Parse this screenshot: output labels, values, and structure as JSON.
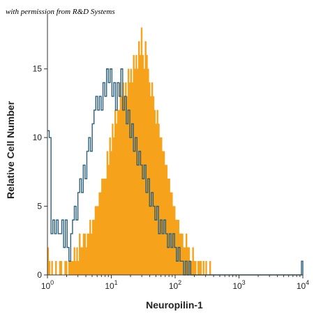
{
  "watermark": "with permission from R&D Systems",
  "chart_data": {
    "type": "histogram",
    "xscale": "log",
    "xlim": [
      1,
      10000
    ],
    "ylim": [
      0,
      19
    ],
    "xlabel": "Neuropilin-1",
    "ylabel": "Relative Cell Number",
    "xticks": [
      1,
      10,
      100,
      1000,
      10000
    ],
    "xtick_labels": [
      {
        "base": "10",
        "exp": "0"
      },
      {
        "base": "10",
        "exp": "1"
      },
      {
        "base": "10",
        "exp": "2"
      },
      {
        "base": "10",
        "exp": "3"
      },
      {
        "base": "10",
        "exp": "4"
      }
    ],
    "yticks": [
      0,
      5,
      10,
      15
    ],
    "ytick_labels": [
      "0",
      "5",
      "10",
      "15"
    ],
    "grid": false,
    "legend": "none",
    "series": [
      {
        "style": "filled",
        "color": "#f7a21b",
        "bins_log10": [
          0.0,
          2.6
        ],
        "values": [
          2,
          1,
          0,
          1,
          0,
          0,
          1,
          0,
          0,
          1,
          1,
          0,
          0,
          1,
          1,
          0,
          1,
          1,
          1,
          1,
          2,
          1,
          2,
          1,
          3,
          2,
          2,
          3,
          3,
          2,
          3,
          3,
          4,
          3,
          4,
          4,
          5,
          5,
          5,
          6,
          6,
          7,
          7,
          7,
          7,
          9,
          8,
          10,
          9,
          11,
          10,
          12,
          11,
          12,
          12,
          14,
          13,
          14,
          13,
          14,
          13,
          15,
          14,
          15,
          14,
          16,
          15,
          16,
          15,
          17,
          16,
          18,
          16,
          15,
          17,
          16,
          15,
          14,
          13,
          14,
          13,
          12,
          11,
          12,
          11,
          10,
          10,
          9,
          9,
          8,
          8,
          7,
          7,
          6,
          6,
          5,
          5,
          4,
          4,
          4,
          3,
          3,
          3,
          2,
          2,
          3,
          2,
          2,
          1,
          1,
          2,
          1,
          1,
          0,
          1,
          1,
          1,
          0,
          1,
          0,
          1,
          0,
          0,
          1,
          0,
          0
        ]
      },
      {
        "style": "outline",
        "color": "#2b5f7e",
        "bins_log10": [
          0.0,
          2.3
        ],
        "values": [
          10.5,
          10,
          3,
          4,
          3,
          4,
          3,
          3,
          4,
          2,
          4,
          2,
          1,
          3,
          4,
          5,
          4,
          6,
          7,
          6,
          8,
          7,
          9,
          10,
          9,
          11,
          12,
          13,
          12,
          13,
          12,
          14,
          13,
          15,
          14,
          15,
          13,
          14,
          12,
          14,
          13,
          15,
          12,
          13,
          11,
          12,
          10,
          11,
          9,
          10,
          8,
          9,
          8,
          7,
          8,
          6,
          7,
          5,
          6,
          5,
          4,
          5,
          3,
          4,
          3,
          4,
          3,
          2,
          3,
          2,
          3,
          2,
          1,
          2,
          1,
          1,
          0,
          1,
          0,
          1,
          0,
          0
        ],
        "tail": [
          {
            "x": 10000,
            "value": 1
          }
        ]
      }
    ]
  }
}
